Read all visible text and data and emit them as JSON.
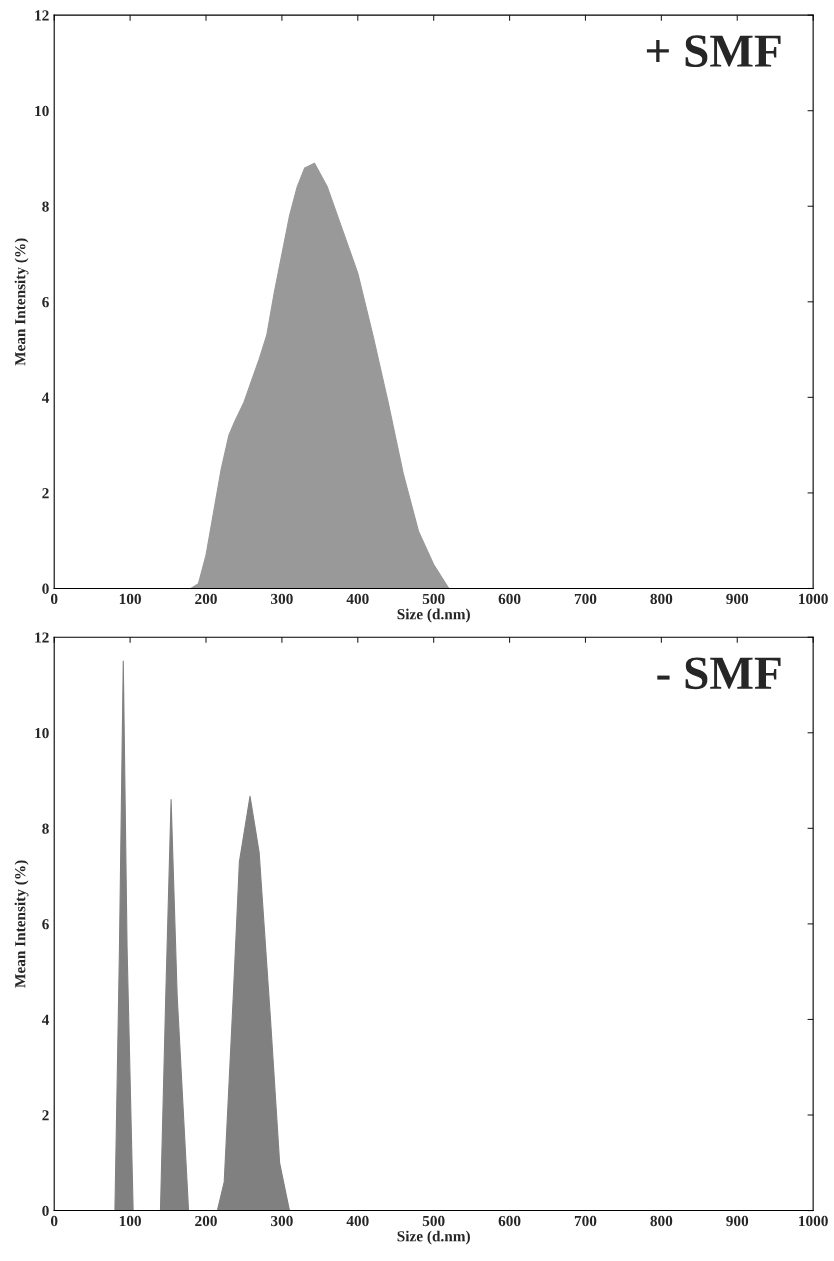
{
  "chart_data": [
    {
      "type": "area",
      "xlabel": "Size (d.nm)",
      "ylabel": "Mean Intensity (%)",
      "annotations": [
        "+ SMF"
      ],
      "xlim": [
        0,
        1000
      ],
      "ylim": [
        0,
        12
      ],
      "xticks": [
        0,
        100,
        200,
        300,
        400,
        500,
        600,
        700,
        800,
        900,
        1000
      ],
      "yticks": [
        0,
        2,
        4,
        6,
        8,
        10,
        12
      ],
      "grid": false,
      "legend": false,
      "series": [
        {
          "color": "#999999",
          "x": [
            0,
            180,
            190,
            200,
            210,
            220,
            230,
            238,
            250,
            270,
            280,
            290,
            300,
            310,
            320,
            330,
            343,
            360,
            380,
            400,
            420,
            440,
            460,
            480,
            500,
            520,
            1000
          ],
          "values": [
            0,
            0,
            0.1,
            0.7,
            1.6,
            2.5,
            3.2,
            3.5,
            3.9,
            4.8,
            5.3,
            6.2,
            7.0,
            7.8,
            8.4,
            8.8,
            8.9,
            8.4,
            7.5,
            6.6,
            5.3,
            3.9,
            2.4,
            1.2,
            0.5,
            0,
            0
          ]
        }
      ]
    },
    {
      "type": "area",
      "xlabel": "Size (d.nm)",
      "ylabel": "Mean Intensity (%)",
      "annotations": [
        "- SMF"
      ],
      "xlim": [
        0,
        1000
      ],
      "ylim": [
        0,
        12
      ],
      "xticks": [
        0,
        100,
        200,
        300,
        400,
        500,
        600,
        700,
        800,
        900,
        1000
      ],
      "yticks": [
        0,
        2,
        4,
        6,
        8,
        10,
        12
      ],
      "grid": false,
      "legend": false,
      "series": [
        {
          "color": "#808080",
          "x": [
            0,
            80,
            86,
            91,
            96,
            104,
            140,
            147,
            154,
            162,
            177,
            215,
            224,
            236,
            244,
            258,
            270,
            285,
            297,
            310,
            1000
          ],
          "values": [
            0,
            0,
            5.5,
            11.5,
            5.5,
            0,
            0,
            4.5,
            8.6,
            4.5,
            0,
            0,
            0.6,
            4.5,
            7.3,
            8.67,
            7.5,
            4.0,
            1.0,
            0,
            0
          ]
        }
      ]
    }
  ]
}
